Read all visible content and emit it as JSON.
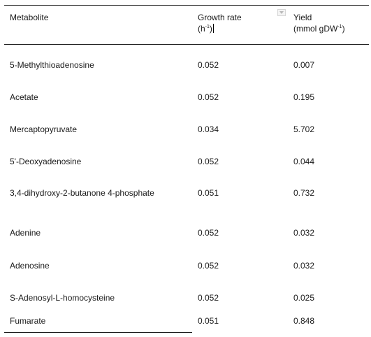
{
  "header": {
    "metabolite": "Metabolite",
    "growth_rate_line1": "Growth rate",
    "growth_rate_unit_open": "(h",
    "growth_rate_unit_sup": "-1",
    "growth_rate_unit_close": ")",
    "yield_line1": "Yield",
    "yield_unit_open": "(mmol gDW",
    "yield_unit_sup": "-1",
    "yield_unit_close": ")",
    "sort_icon": "dropdown-arrow-icon"
  },
  "rows": [
    {
      "metabolite": "5-Methylthioadenosine",
      "growth_rate": "0.052",
      "yield": "0.007"
    },
    {
      "metabolite": "Acetate",
      "growth_rate": "0.052",
      "yield": "0.195"
    },
    {
      "metabolite": "Mercaptopyruvate",
      "growth_rate": "0.034",
      "yield": "5.702"
    },
    {
      "metabolite": "5'-Deoxyadenosine",
      "growth_rate": "0.052",
      "yield": "0.044"
    },
    {
      "metabolite": "3,4-dihydroxy-2-butanone 4-phosphate",
      "growth_rate": "0.051",
      "yield": "0.732"
    },
    {
      "metabolite": "Adenine",
      "growth_rate": "0.052",
      "yield": "0.032"
    },
    {
      "metabolite": "Adenosine",
      "growth_rate": "0.052",
      "yield": "0.032"
    },
    {
      "metabolite": "S-Adenosyl-L-homocysteine",
      "growth_rate": "0.052",
      "yield": "0.025"
    },
    {
      "metabolite": "Fumarate",
      "growth_rate": "0.051",
      "yield": "0.848"
    }
  ]
}
